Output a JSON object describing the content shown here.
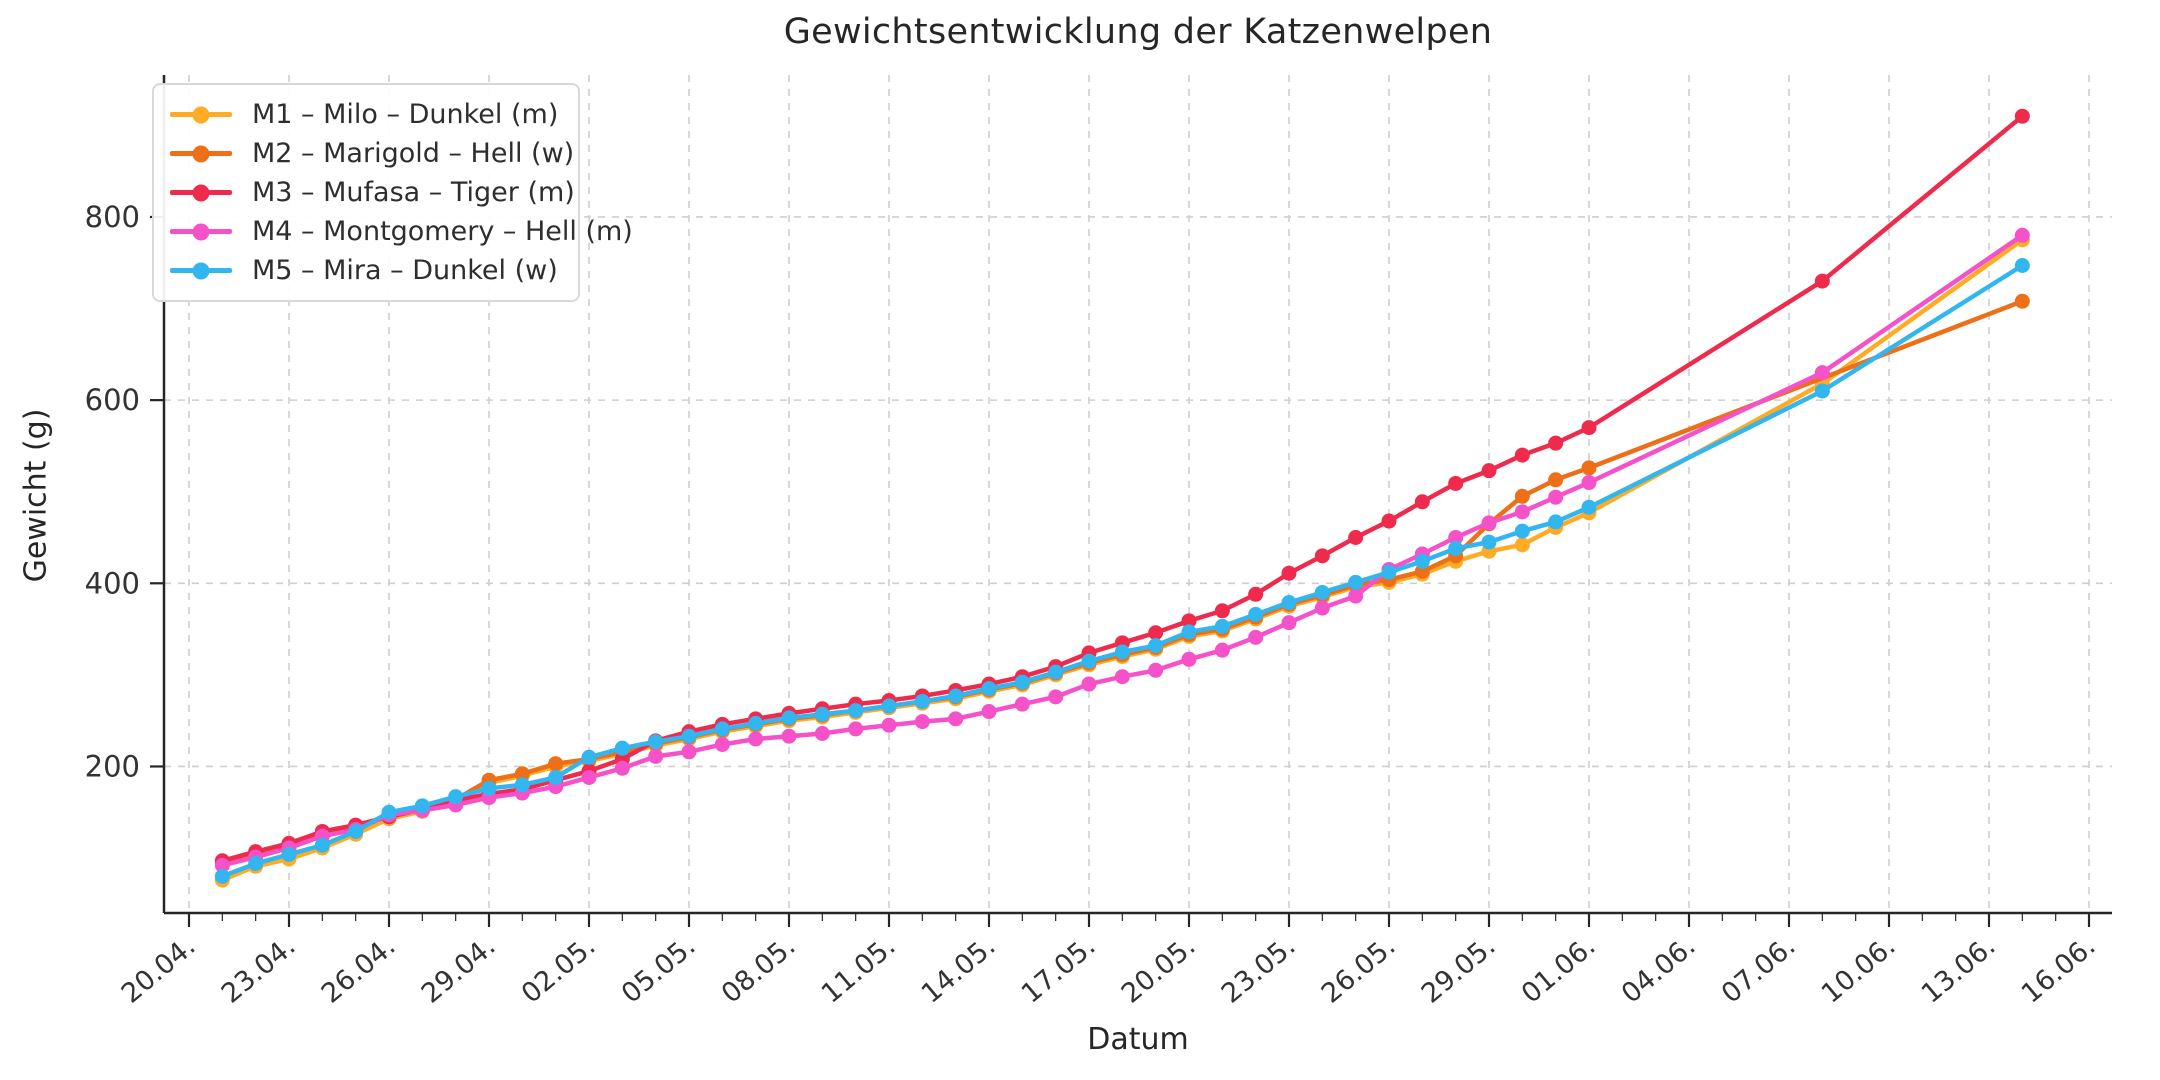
{
  "figure": {
    "title": "Gewichtsentwicklung der Katzenwelpen",
    "xlabel": "Datum",
    "ylabel": "Gewicht (g)"
  },
  "colors": {
    "background": "#ffffff",
    "grid": "#cfcfcf",
    "spine": "#262626",
    "tick_label": "#333333",
    "title": "#262626",
    "legend_border": "#d9d9d9"
  },
  "chart_data": {
    "type": "line",
    "title": "Gewichtsentwicklung der Katzenwelpen",
    "xlabel": "Datum",
    "ylabel": "Gewicht (g)",
    "grid": true,
    "legend_position": "upper left",
    "x_axis": {
      "tick_labels": [
        "20.04.",
        "23.04.",
        "26.04.",
        "29.04.",
        "02.05.",
        "05.05.",
        "08.05.",
        "11.05.",
        "14.05.",
        "17.05.",
        "20.05.",
        "23.05.",
        "26.05.",
        "29.05.",
        "01.06.",
        "04.06.",
        "07.06.",
        "10.06.",
        "13.06.",
        "16.06."
      ],
      "tick_days": [
        0,
        3,
        6,
        9,
        12,
        15,
        18,
        21,
        24,
        27,
        30,
        33,
        36,
        39,
        42,
        45,
        48,
        51,
        54,
        57
      ],
      "day_origin_label": "20.04.",
      "minor_ticks_every_day": true,
      "lim_days": [
        -0.75,
        57.7
      ]
    },
    "y_axis": {
      "ticks": [
        200,
        400,
        600,
        800
      ],
      "lim": [
        40,
        955
      ]
    },
    "series": [
      {
        "id": "M1",
        "label": "M1 – Milo – Dunkel (m)",
        "color": "#FFAB24",
        "points": [
          [
            1,
            76
          ],
          [
            2,
            91
          ],
          [
            3,
            99
          ],
          [
            4,
            111
          ],
          [
            5,
            126
          ],
          [
            6,
            143
          ],
          [
            7,
            151
          ],
          [
            8,
            162
          ],
          [
            9,
            182
          ],
          [
            10,
            190
          ],
          [
            11,
            200
          ],
          [
            12,
            206
          ],
          [
            13,
            214
          ],
          [
            14,
            223
          ],
          [
            15,
            230
          ],
          [
            16,
            238
          ],
          [
            17,
            244
          ],
          [
            18,
            250
          ],
          [
            19,
            254
          ],
          [
            20,
            259
          ],
          [
            21,
            264
          ],
          [
            22,
            269
          ],
          [
            23,
            274
          ],
          [
            24,
            282
          ],
          [
            25,
            289
          ],
          [
            26,
            300
          ],
          [
            27,
            311
          ],
          [
            28,
            320
          ],
          [
            29,
            328
          ],
          [
            30,
            342
          ],
          [
            31,
            348
          ],
          [
            32,
            361
          ],
          [
            33,
            375
          ],
          [
            34,
            385
          ],
          [
            35,
            396
          ],
          [
            36,
            401
          ],
          [
            37,
            410
          ],
          [
            38,
            424
          ],
          [
            39,
            435
          ],
          [
            40,
            442
          ],
          [
            41,
            461
          ],
          [
            42,
            477
          ],
          [
            49,
            618
          ],
          [
            55,
            775
          ]
        ]
      },
      {
        "id": "M2",
        "label": "M2 – Marigold – Hell (w)",
        "color": "#ED6F17",
        "points": [
          [
            1,
            94
          ],
          [
            2,
            104
          ],
          [
            3,
            113
          ],
          [
            4,
            127
          ],
          [
            5,
            133
          ],
          [
            6,
            146
          ],
          [
            7,
            154
          ],
          [
            8,
            164
          ],
          [
            9,
            185
          ],
          [
            10,
            192
          ],
          [
            11,
            203
          ],
          [
            12,
            208
          ],
          [
            13,
            216
          ],
          [
            14,
            225
          ],
          [
            15,
            232
          ],
          [
            16,
            240
          ],
          [
            17,
            246
          ],
          [
            18,
            252
          ],
          [
            19,
            256
          ],
          [
            20,
            261
          ],
          [
            21,
            266
          ],
          [
            22,
            271
          ],
          [
            23,
            276
          ],
          [
            24,
            284
          ],
          [
            25,
            291
          ],
          [
            26,
            302
          ],
          [
            27,
            313
          ],
          [
            28,
            322
          ],
          [
            29,
            330
          ],
          [
            30,
            344
          ],
          [
            31,
            350
          ],
          [
            32,
            363
          ],
          [
            33,
            377
          ],
          [
            34,
            387
          ],
          [
            35,
            398
          ],
          [
            36,
            404
          ],
          [
            37,
            413
          ],
          [
            38,
            430
          ],
          [
            39,
            465
          ],
          [
            40,
            495
          ],
          [
            41,
            513
          ],
          [
            42,
            526
          ],
          [
            55,
            708
          ]
        ]
      },
      {
        "id": "M3",
        "label": "M3 – Mufasa – Tiger (m)",
        "color": "#EE2B4D",
        "points": [
          [
            1,
            97
          ],
          [
            2,
            107
          ],
          [
            3,
            116
          ],
          [
            4,
            129
          ],
          [
            5,
            136
          ],
          [
            6,
            145
          ],
          [
            7,
            153
          ],
          [
            8,
            163
          ],
          [
            9,
            170
          ],
          [
            10,
            175
          ],
          [
            11,
            185
          ],
          [
            12,
            195
          ],
          [
            13,
            208
          ],
          [
            14,
            228
          ],
          [
            15,
            238
          ],
          [
            16,
            246
          ],
          [
            17,
            252
          ],
          [
            18,
            258
          ],
          [
            19,
            263
          ],
          [
            20,
            268
          ],
          [
            21,
            272
          ],
          [
            22,
            277
          ],
          [
            23,
            283
          ],
          [
            24,
            290
          ],
          [
            25,
            298
          ],
          [
            26,
            309
          ],
          [
            27,
            324
          ],
          [
            28,
            335
          ],
          [
            29,
            346
          ],
          [
            30,
            359
          ],
          [
            31,
            370
          ],
          [
            32,
            388
          ],
          [
            33,
            411
          ],
          [
            34,
            430
          ],
          [
            35,
            450
          ],
          [
            36,
            468
          ],
          [
            37,
            489
          ],
          [
            38,
            509
          ],
          [
            39,
            523
          ],
          [
            40,
            540
          ],
          [
            41,
            553
          ],
          [
            42,
            570
          ],
          [
            49,
            730
          ],
          [
            55,
            910
          ]
        ]
      },
      {
        "id": "M4",
        "label": "M4 – Montgomery – Hell (m)",
        "color": "#F551C9",
        "points": [
          [
            1,
            92
          ],
          [
            2,
            101
          ],
          [
            3,
            111
          ],
          [
            4,
            124
          ],
          [
            5,
            131
          ],
          [
            6,
            147
          ],
          [
            7,
            152
          ],
          [
            8,
            158
          ],
          [
            9,
            166
          ],
          [
            10,
            171
          ],
          [
            11,
            178
          ],
          [
            12,
            188
          ],
          [
            13,
            198
          ],
          [
            14,
            211
          ],
          [
            15,
            216
          ],
          [
            16,
            224
          ],
          [
            17,
            230
          ],
          [
            18,
            233
          ],
          [
            19,
            236
          ],
          [
            20,
            241
          ],
          [
            21,
            245
          ],
          [
            22,
            249
          ],
          [
            23,
            252
          ],
          [
            24,
            260
          ],
          [
            25,
            268
          ],
          [
            26,
            276
          ],
          [
            27,
            290
          ],
          [
            28,
            298
          ],
          [
            29,
            305
          ],
          [
            30,
            317
          ],
          [
            31,
            327
          ],
          [
            32,
            341
          ],
          [
            33,
            357
          ],
          [
            34,
            373
          ],
          [
            35,
            386
          ],
          [
            36,
            415
          ],
          [
            37,
            432
          ],
          [
            38,
            450
          ],
          [
            39,
            466
          ],
          [
            40,
            478
          ],
          [
            41,
            494
          ],
          [
            42,
            510
          ],
          [
            49,
            630
          ],
          [
            55,
            780
          ]
        ]
      },
      {
        "id": "M5",
        "label": "M5 – Mira – Dunkel (w)",
        "color": "#33B5F0",
        "points": [
          [
            1,
            80
          ],
          [
            2,
            94
          ],
          [
            3,
            104
          ],
          [
            4,
            114
          ],
          [
            5,
            129
          ],
          [
            6,
            150
          ],
          [
            7,
            157
          ],
          [
            8,
            167
          ],
          [
            9,
            176
          ],
          [
            10,
            180
          ],
          [
            11,
            188
          ],
          [
            12,
            210
          ],
          [
            13,
            220
          ],
          [
            14,
            227
          ],
          [
            15,
            233
          ],
          [
            16,
            241
          ],
          [
            17,
            247
          ],
          [
            18,
            253
          ],
          [
            19,
            257
          ],
          [
            20,
            261
          ],
          [
            21,
            266
          ],
          [
            22,
            271
          ],
          [
            23,
            277
          ],
          [
            24,
            285
          ],
          [
            25,
            292
          ],
          [
            26,
            303
          ],
          [
            27,
            315
          ],
          [
            28,
            325
          ],
          [
            29,
            332
          ],
          [
            30,
            347
          ],
          [
            31,
            353
          ],
          [
            32,
            366
          ],
          [
            33,
            379
          ],
          [
            34,
            390
          ],
          [
            35,
            401
          ],
          [
            36,
            412
          ],
          [
            37,
            424
          ],
          [
            38,
            438
          ],
          [
            39,
            445
          ],
          [
            40,
            457
          ],
          [
            41,
            467
          ],
          [
            42,
            483
          ],
          [
            49,
            610
          ],
          [
            55,
            747
          ]
        ]
      }
    ]
  }
}
